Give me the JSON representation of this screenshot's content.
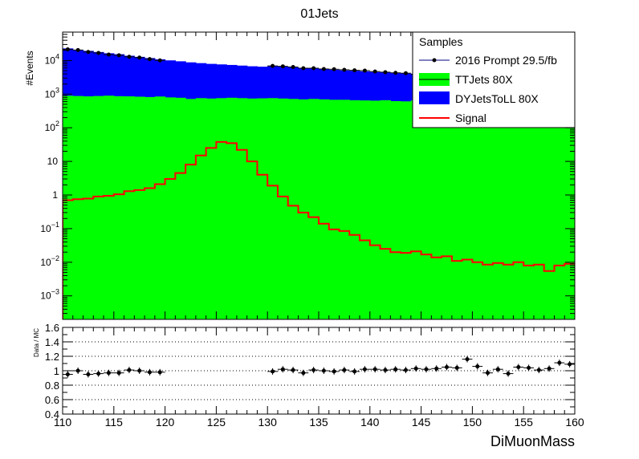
{
  "chart_data": {
    "type": "stacked-histogram-with-ratio",
    "title": "01Jets",
    "xlabel": "DiMuonMass",
    "ylabel": "#Events",
    "ratio_ylabel": "Data / MC",
    "xlim": [
      110,
      160
    ],
    "ylim": [
      0.0002,
      70000
    ],
    "yscale": "log",
    "ratio_ylim": [
      0.4,
      1.6
    ],
    "x_ticks": [
      "110",
      "115",
      "120",
      "125",
      "130",
      "135",
      "140",
      "145",
      "150",
      "155",
      "160"
    ],
    "y_ticks": [
      {
        "base": "10",
        "exp": "4",
        "value": 10000
      },
      {
        "base": "10",
        "exp": "3",
        "value": 1000
      },
      {
        "base": "10",
        "exp": "2",
        "value": 100
      },
      {
        "base": "10",
        "exp": "",
        "value": 10
      },
      {
        "base": "1",
        "exp": "",
        "value": 1
      },
      {
        "base": "10",
        "exp": "−1",
        "value": 0.1
      },
      {
        "base": "10",
        "exp": "−2",
        "value": 0.01
      },
      {
        "base": "10",
        "exp": "−3",
        "value": 0.001
      }
    ],
    "ratio_ticks": [
      "0.4",
      "0.6",
      "0.8",
      "1",
      "1.2",
      "1.4",
      "1.6"
    ],
    "legend": {
      "title": "Samples",
      "placement": "top-right",
      "entries": [
        {
          "label": "2016 Prompt 29.5/fb",
          "style": "marker",
          "color": "#000080"
        },
        {
          "label": "TTJets 80X",
          "style": "fill",
          "color": "#00ff00"
        },
        {
          "label": "DYJetsToLL 80X",
          "style": "fill",
          "color": "#0000ff"
        },
        {
          "label": "Signal",
          "style": "line",
          "color": "#ff0000"
        }
      ]
    },
    "bin_edges_start": 110,
    "bin_width": 1,
    "series": [
      {
        "name": "TTJets 80X",
        "color": "#00ff00",
        "values": [
          900,
          880,
          860,
          880,
          900,
          870,
          860,
          840,
          820,
          850,
          800,
          780,
          720,
          760,
          740,
          760,
          780,
          760,
          740,
          750,
          760,
          740,
          720,
          700,
          720,
          700,
          680,
          680,
          660,
          650,
          640,
          660,
          620,
          610,
          650,
          620,
          640,
          600,
          620,
          640,
          600,
          600,
          620,
          620,
          640,
          600,
          640,
          630,
          640,
          640
        ]
      },
      {
        "name": "DYJetsToLL 80X",
        "color": "#0000ff",
        "values": [
          22000,
          20000,
          18500,
          17000,
          15500,
          14500,
          13000,
          12000,
          11000,
          10000,
          9300,
          8700,
          8100,
          7600,
          7200,
          6900,
          6600,
          6300,
          6000,
          5800,
          6100,
          5900,
          5600,
          5200,
          5100,
          4900,
          4600,
          4400,
          4300,
          4100,
          3900,
          3800,
          3600,
          3500,
          3400,
          3300,
          3100,
          3000,
          2900,
          2800,
          2700,
          2700,
          2600,
          2600,
          2500,
          2400,
          2400,
          2300,
          2300,
          2300
        ]
      },
      {
        "name": "Signal",
        "color": "#ff0000",
        "values": [
          0.7,
          0.75,
          0.78,
          0.9,
          0.95,
          1.05,
          1.3,
          1.4,
          1.6,
          2.1,
          3.0,
          4.5,
          8.0,
          15,
          25,
          38,
          35,
          22,
          10,
          4.0,
          1.9,
          0.9,
          0.48,
          0.3,
          0.22,
          0.14,
          0.095,
          0.085,
          0.065,
          0.045,
          0.032,
          0.025,
          0.02,
          0.019,
          0.021,
          0.017,
          0.014,
          0.015,
          0.011,
          0.012,
          0.01,
          0.0085,
          0.0095,
          0.0085,
          0.01,
          0.008,
          0.0085,
          0.0055,
          0.008,
          0.009
        ]
      },
      {
        "name": "2016 Prompt 29.5/fb",
        "color": "#000000",
        "x": [
          110.5,
          111.5,
          112.5,
          113.5,
          114.5,
          115.5,
          116.5,
          117.5,
          118.5,
          119.5,
          130.5,
          131.5,
          132.5,
          133.5,
          134.5,
          135.5,
          136.5,
          137.5,
          138.5,
          139.5,
          140.5,
          141.5,
          142.5,
          143.5,
          144.5,
          145.5,
          146.5,
          147.5,
          148.5,
          149.5,
          150.5,
          151.5,
          152.5,
          153.5,
          154.5,
          155.5,
          156.5,
          157.5,
          158.5,
          159.5
        ],
        "values": [
          21500,
          20500,
          18000,
          16800,
          15000,
          14300,
          12900,
          12200,
          11000,
          10100,
          6900,
          6700,
          6400,
          5900,
          5900,
          5600,
          5500,
          5300,
          5100,
          5000,
          4700,
          4500,
          4300,
          4200,
          3900,
          3800,
          3600,
          3500,
          3400,
          3300,
          3200,
          3100,
          3000,
          2900,
          2800,
          2750,
          2600,
          2550,
          2500,
          2400
        ]
      },
      {
        "name": "Data / MC",
        "x": [
          110.5,
          111.5,
          112.5,
          113.5,
          114.5,
          115.5,
          116.5,
          117.5,
          118.5,
          119.5,
          130.5,
          131.5,
          132.5,
          133.5,
          134.5,
          135.5,
          136.5,
          137.5,
          138.5,
          139.5,
          140.5,
          141.5,
          142.5,
          143.5,
          144.5,
          145.5,
          146.5,
          147.5,
          148.5,
          149.5,
          150.5,
          151.5,
          152.5,
          153.5,
          154.5,
          155.5,
          156.5,
          157.5,
          158.5,
          159.5
        ],
        "values": [
          0.95,
          1.0,
          0.95,
          0.96,
          0.97,
          0.97,
          1.01,
          1.0,
          0.98,
          0.98,
          0.99,
          1.02,
          1.01,
          0.97,
          1.01,
          1.0,
          0.99,
          1.01,
          0.99,
          1.02,
          1.02,
          1.01,
          1.02,
          1.01,
          1.03,
          1.02,
          1.03,
          1.05,
          1.04,
          1.16,
          1.06,
          0.97,
          1.02,
          0.96,
          1.05,
          1.04,
          1.01,
          1.03,
          1.11,
          1.09
        ]
      }
    ]
  }
}
